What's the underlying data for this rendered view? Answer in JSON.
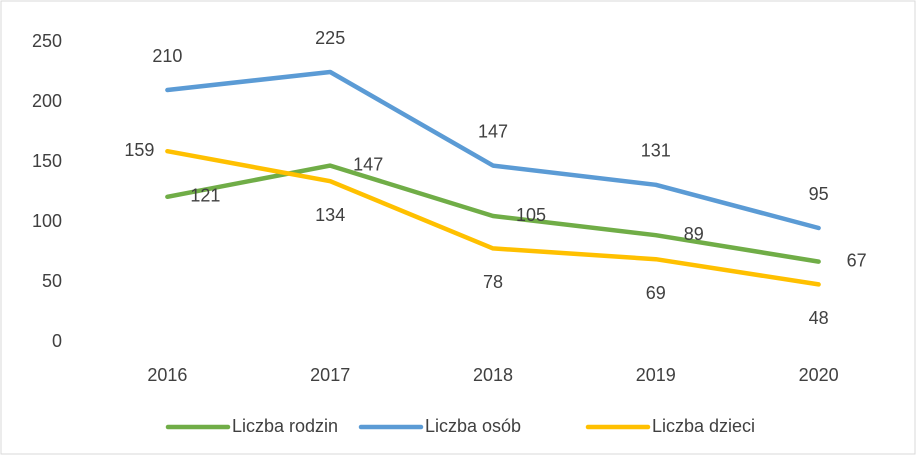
{
  "chart_data": {
    "type": "line",
    "categories": [
      "2016",
      "2017",
      "2018",
      "2019",
      "2020"
    ],
    "series": [
      {
        "name": "Liczba rodzin",
        "color": "#70ad47",
        "values": [
          121,
          147,
          105,
          89,
          67
        ]
      },
      {
        "name": "Liczba osób",
        "color": "#5b9bd5",
        "values": [
          210,
          225,
          147,
          131,
          95
        ]
      },
      {
        "name": "Liczba dzieci",
        "color": "#ffc000",
        "values": [
          159,
          134,
          78,
          69,
          48
        ]
      }
    ],
    "ylim": [
      0,
      250
    ],
    "yticks": [
      0,
      50,
      100,
      150,
      200,
      250
    ],
    "grid": false,
    "legend": "bottom"
  }
}
